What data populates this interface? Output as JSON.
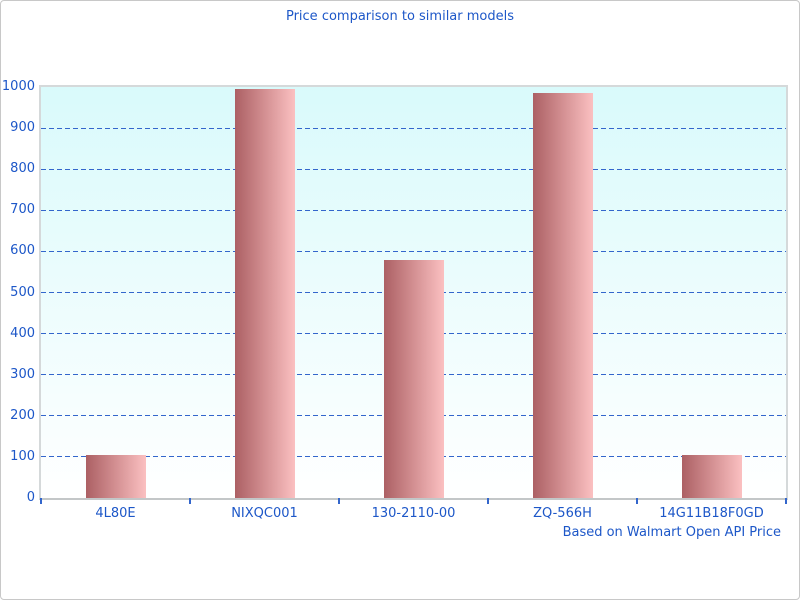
{
  "colors": {
    "text_blue": "#1d57c8",
    "grid_blue": "#3366cc",
    "bar_gradient_left": "#ac6064",
    "bar_gradient_right": "#fbc0c1",
    "plot_bg_top": "#d9fafb",
    "plot_bg_bottom": "#ffffff",
    "border_gray": "#c8c8c8"
  },
  "chart_data": {
    "type": "bar",
    "title": "Price comparison to similar models",
    "categories": [
      "4L80E",
      "NIXQC001",
      "130-2110-00",
      "ZQ-566H",
      "14G11B18F0GD"
    ],
    "values": [
      105,
      995,
      580,
      985,
      105
    ],
    "xlabel": "",
    "ylabel": "",
    "ylim": [
      0,
      1000
    ],
    "ytick_step": 100,
    "yticks": [
      0,
      100,
      200,
      300,
      400,
      500,
      600,
      700,
      800,
      900,
      1000
    ],
    "grid": "horizontal-dashed",
    "legend": "none",
    "annotation": "Based on Walmart Open API Price"
  }
}
